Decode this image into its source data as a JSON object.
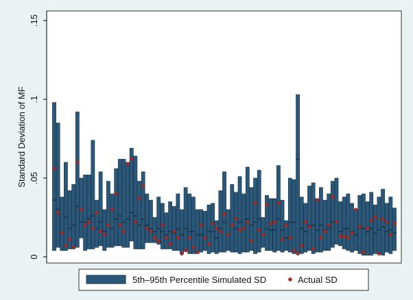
{
  "chart_data": {
    "type": "box",
    "title": "",
    "xlabel": "",
    "ylabel": "Standard Deviation of MF",
    "ylim": [
      0,
      0.15
    ],
    "yticks": [
      {
        "value": 0,
        "label": "0"
      },
      {
        "value": 0.05,
        "label": ".05"
      },
      {
        "value": 0.1,
        "label": ".1"
      },
      {
        "value": 0.15,
        "label": ".15"
      }
    ],
    "grid": false,
    "legend": {
      "position": "bottom",
      "items": [
        {
          "label": "5th–95th Percentile Simulated SD",
          "marker": "bar"
        },
        {
          "label": "Actual SD",
          "marker": "dot"
        }
      ]
    },
    "colors": {
      "bar_fill": "#2b5878",
      "bar_edge": "#163448",
      "dot": "#a02a2a",
      "plot_bg": "#ffffff",
      "outer_bg": "#eaf2f3"
    },
    "series": [
      {
        "name": "5th–95th Percentile Simulated SD",
        "low": [
          0.004,
          0.006,
          0.004,
          0.004,
          0.005,
          0.005,
          0.006,
          0.012,
          0.004,
          0.005,
          0.005,
          0.006,
          0.007,
          0.004,
          0.006,
          0.006,
          0.007,
          0.007,
          0.006,
          0.006,
          0.01,
          0.005,
          0.005,
          0.005,
          0.009,
          0.009,
          0.009,
          0.008,
          0.005,
          0.005,
          0.005,
          0.004,
          0.004,
          0.002,
          0.004,
          0.002,
          0.002,
          0.002,
          0.003,
          0.004,
          0.002,
          0.003,
          0.002,
          0.003,
          0.003,
          0.004,
          0.003,
          0.003,
          0.002,
          0.003,
          0.003,
          0.004,
          0.002,
          0.003,
          0.006,
          0.004,
          0.004,
          0.003,
          0.004,
          0.003,
          0.004,
          0.003,
          0.002,
          0.002,
          0.002,
          0.003,
          0.004,
          0.002,
          0.003,
          0.003,
          0.004,
          0.004,
          0.006,
          0.008,
          0.007,
          0.005,
          0.004,
          0.003,
          0.004,
          0.002,
          0.001,
          0.001,
          0.001,
          0.002,
          0.002,
          0.001,
          0.003,
          0.002,
          0.004
        ],
        "high": [
          0.098,
          0.085,
          0.038,
          0.06,
          0.042,
          0.046,
          0.092,
          0.05,
          0.052,
          0.052,
          0.074,
          0.036,
          0.054,
          0.03,
          0.048,
          0.04,
          0.056,
          0.062,
          0.062,
          0.06,
          0.069,
          0.064,
          0.048,
          0.054,
          0.04,
          0.036,
          0.025,
          0.038,
          0.034,
          0.028,
          0.035,
          0.032,
          0.04,
          0.03,
          0.044,
          0.04,
          0.038,
          0.03,
          0.03,
          0.029,
          0.033,
          0.034,
          0.023,
          0.042,
          0.054,
          0.03,
          0.046,
          0.041,
          0.051,
          0.04,
          0.057,
          0.044,
          0.05,
          0.055,
          0.025,
          0.039,
          0.037,
          0.037,
          0.058,
          0.036,
          0.023,
          0.05,
          0.049,
          0.103,
          0.038,
          0.034,
          0.045,
          0.047,
          0.037,
          0.044,
          0.036,
          0.04,
          0.048,
          0.05,
          0.035,
          0.038,
          0.04,
          0.034,
          0.03,
          0.039,
          0.04,
          0.035,
          0.041,
          0.033,
          0.038,
          0.043,
          0.034,
          0.038,
          0.031
        ],
        "mid": [
          0.036,
          0.03,
          0.015,
          0.025,
          0.018,
          0.02,
          0.032,
          0.022,
          0.022,
          0.024,
          0.026,
          0.018,
          0.022,
          0.016,
          0.02,
          0.018,
          0.024,
          0.026,
          0.022,
          0.024,
          0.028,
          0.026,
          0.02,
          0.024,
          0.02,
          0.018,
          0.016,
          0.018,
          0.016,
          0.014,
          0.016,
          0.015,
          0.018,
          0.014,
          0.018,
          0.016,
          0.016,
          0.014,
          0.014,
          0.012,
          0.016,
          0.016,
          0.012,
          0.018,
          0.022,
          0.014,
          0.02,
          0.018,
          0.022,
          0.018,
          0.024,
          0.02,
          0.022,
          0.024,
          0.014,
          0.018,
          0.017,
          0.017,
          0.024,
          0.017,
          0.012,
          0.022,
          0.022,
          0.062,
          0.018,
          0.016,
          0.02,
          0.02,
          0.017,
          0.02,
          0.017,
          0.018,
          0.022,
          0.022,
          0.016,
          0.018,
          0.018,
          0.016,
          0.014,
          0.018,
          0.018,
          0.016,
          0.018,
          0.015,
          0.017,
          0.019,
          0.016,
          0.017,
          0.015
        ]
      },
      {
        "name": "Actual SD",
        "values": [
          0.056,
          0.028,
          0.015,
          0.007,
          0.011,
          0.006,
          0.06,
          0.03,
          0.02,
          0.022,
          0.018,
          0.028,
          0.016,
          0.014,
          0.02,
          0.03,
          0.04,
          0.02,
          0.016,
          0.059,
          0.062,
          0.022,
          0.037,
          0.045,
          0.018,
          0.016,
          0.012,
          0.01,
          0.02,
          0.012,
          0.008,
          0.016,
          0.012,
          0.002,
          0.004,
          0.012,
          0.006,
          0.003,
          0.02,
          0.012,
          0.008,
          0.021,
          0.018,
          0.016,
          0.027,
          0.014,
          0.02,
          0.024,
          0.017,
          0.018,
          0.022,
          0.01,
          0.034,
          0.017,
          0.014,
          0.033,
          0.021,
          0.022,
          0.034,
          0.011,
          0.02,
          0.012,
          0.004,
          0.002,
          0.007,
          0.022,
          0.019,
          0.005,
          0.036,
          0.012,
          0.016,
          0.02,
          0.038,
          0.022,
          0.013,
          0.013,
          0.012,
          0.015,
          0.03,
          0.019,
          0.003,
          0.018,
          0.023,
          0.025,
          0.002,
          0.024,
          0.022,
          0.014,
          0.021
        ]
      }
    ]
  }
}
